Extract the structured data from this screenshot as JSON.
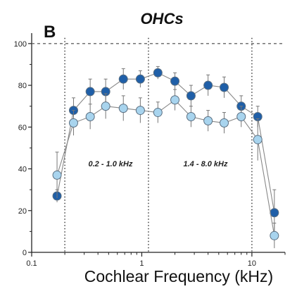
{
  "chart_data": {
    "type": "line",
    "title": "OHCs",
    "panel_label": "B",
    "xlabel": "Cochlear Frequency (kHz)",
    "ylabel": "",
    "xscale": "log",
    "xlim": [
      0.1,
      20
    ],
    "ylim": [
      0,
      105
    ],
    "x_ticks": [
      {
        "value": 0.1,
        "label": "0.1"
      },
      {
        "value": 1,
        "label": "1"
      },
      {
        "value": 10,
        "label": "10"
      }
    ],
    "y_ticks": [
      {
        "value": 0,
        "label": "0"
      },
      {
        "value": 20,
        "label": "20"
      },
      {
        "value": 40,
        "label": "40"
      },
      {
        "value": 60,
        "label": "60"
      },
      {
        "value": 80,
        "label": "80"
      },
      {
        "value": 100,
        "label": "100"
      }
    ],
    "reference_line_y": 100,
    "vertical_lines_x": [
      0.2,
      1.15,
      10
    ],
    "annotations": [
      "0.2 - 1.0 kHz",
      "1.4 - 8.0 kHz"
    ],
    "grid": false,
    "series": [
      {
        "color": "#1f5fa8",
        "x": [
          0.17,
          0.24,
          0.34,
          0.47,
          0.68,
          0.97,
          1.4,
          2.0,
          2.8,
          4.0,
          5.6,
          8.0,
          11.3,
          16.0
        ],
        "values": [
          27,
          68,
          77,
          77,
          83,
          83,
          86,
          82,
          75,
          80,
          79,
          70,
          65,
          19
        ],
        "error": [
          3,
          6,
          6,
          6,
          5,
          4,
          3,
          4,
          5,
          5,
          5,
          5,
          5,
          11
        ]
      },
      {
        "color": "#a8d4ee",
        "x": [
          0.17,
          0.24,
          0.34,
          0.47,
          0.68,
          0.97,
          1.4,
          2.0,
          2.8,
          4.0,
          5.6,
          8.0,
          11.3,
          16.0
        ],
        "values": [
          37,
          62,
          65,
          70,
          69,
          68,
          67,
          73,
          65,
          63,
          62,
          65,
          54,
          8
        ],
        "error": [
          11,
          6,
          6,
          6,
          6,
          6,
          5,
          5,
          5,
          5,
          5,
          5,
          10,
          6
        ]
      }
    ]
  }
}
